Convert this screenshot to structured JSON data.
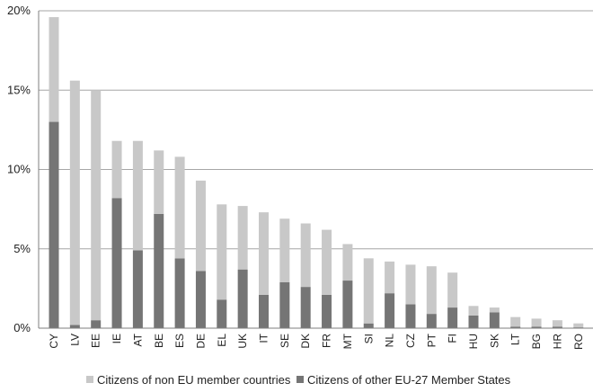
{
  "chart_data": {
    "type": "bar",
    "stacked": true,
    "title": "",
    "xlabel": "",
    "ylabel": "",
    "ylim": [
      0,
      20
    ],
    "yticks": [
      "0%",
      "5%",
      "10%",
      "15%",
      "20%"
    ],
    "ytick_values": [
      0,
      5,
      10,
      15,
      20
    ],
    "grid": true,
    "legend_position": "bottom",
    "categories": [
      "CY",
      "LV",
      "EE",
      "IE",
      "AT",
      "BE",
      "ES",
      "DE",
      "EL",
      "UK",
      "IT",
      "SE",
      "DK",
      "FR",
      "MT",
      "SI",
      "NL",
      "CZ",
      "PT",
      "FI",
      "HU",
      "SK",
      "LT",
      "BG",
      "HR",
      "RO"
    ],
    "series": [
      {
        "name": "Citizens of other EU-27 Member States",
        "color": "#757575",
        "values": [
          13.0,
          0.2,
          0.5,
          8.2,
          4.9,
          7.2,
          4.4,
          3.6,
          1.8,
          3.7,
          2.1,
          2.9,
          2.6,
          2.1,
          3.0,
          0.3,
          2.2,
          1.5,
          0.9,
          1.3,
          0.8,
          1.0,
          0.1,
          0.1,
          0.1,
          0.05
        ]
      },
      {
        "name": "Citizens of non EU member countries",
        "color": "#c8c8c8",
        "values": [
          6.6,
          15.4,
          14.5,
          3.6,
          6.9,
          4.0,
          6.4,
          5.7,
          6.0,
          4.0,
          5.2,
          4.0,
          4.0,
          4.1,
          2.3,
          4.1,
          2.0,
          2.5,
          3.0,
          2.2,
          0.6,
          0.3,
          0.6,
          0.5,
          0.4,
          0.25
        ]
      }
    ]
  }
}
